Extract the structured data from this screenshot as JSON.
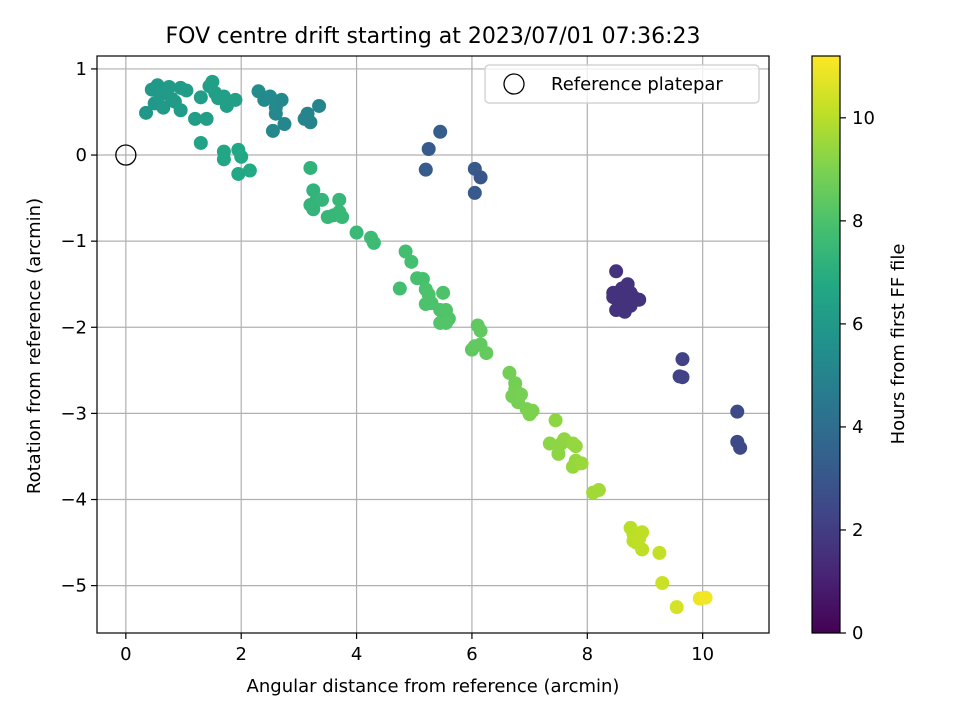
{
  "chart_data": {
    "type": "scatter",
    "title": "FOV centre drift starting at 2023/07/01 07:36:23",
    "xlabel": "Angular distance from reference (arcmin)",
    "ylabel": "Rotation from reference (arcmin)",
    "xlim": [
      -0.5,
      11.15
    ],
    "ylim": [
      -5.55,
      1.15
    ],
    "xticks": [
      0,
      2,
      4,
      6,
      8,
      10
    ],
    "yticks": [
      1,
      0,
      -1,
      -2,
      -3,
      -4,
      -5
    ],
    "grid": true,
    "colormap": "viridis",
    "colorbar": {
      "label": "Hours from first FF file",
      "range": [
        0,
        11.2
      ],
      "ticks": [
        0,
        2,
        4,
        6,
        8,
        10
      ]
    },
    "legend": {
      "position": "top-right",
      "entries": [
        {
          "label": "Reference platepar",
          "marker": "open-circle"
        }
      ]
    },
    "reference_point": {
      "x": 0,
      "y": 0
    },
    "points_columns": [
      "x",
      "y",
      "hours"
    ],
    "points": [
      [
        0.35,
        0.49,
        5.9
      ],
      [
        0.45,
        0.76,
        6.0
      ],
      [
        0.5,
        0.6,
        5.95
      ],
      [
        0.55,
        0.81,
        6.0
      ],
      [
        0.6,
        0.7,
        6.05
      ],
      [
        0.65,
        0.55,
        6.05
      ],
      [
        0.75,
        0.79,
        6.1
      ],
      [
        0.8,
        0.65,
        6.1
      ],
      [
        0.85,
        0.62,
        6.1
      ],
      [
        0.95,
        0.52,
        6.15
      ],
      [
        0.95,
        0.78,
        6.1
      ],
      [
        1.05,
        0.75,
        6.15
      ],
      [
        1.2,
        0.42,
        6.2
      ],
      [
        1.3,
        0.67,
        6.2
      ],
      [
        1.4,
        0.42,
        6.25
      ],
      [
        1.45,
        0.8,
        6.25
      ],
      [
        1.5,
        0.85,
        6.3
      ],
      [
        1.55,
        0.72,
        6.3
      ],
      [
        1.6,
        0.66,
        6.3
      ],
      [
        1.7,
        0.68,
        6.35
      ],
      [
        1.75,
        0.57,
        6.35
      ],
      [
        1.9,
        0.64,
        6.35
      ],
      [
        1.3,
        0.14,
        6.5
      ],
      [
        1.7,
        0.04,
        6.6
      ],
      [
        1.7,
        -0.05,
        6.6
      ],
      [
        1.95,
        0.06,
        6.65
      ],
      [
        2.0,
        -0.02,
        6.7
      ],
      [
        1.95,
        -0.22,
        6.7
      ],
      [
        2.15,
        -0.18,
        6.75
      ],
      [
        2.3,
        0.74,
        5.4
      ],
      [
        2.4,
        0.64,
        5.3
      ],
      [
        2.5,
        0.68,
        5.3
      ],
      [
        2.55,
        0.28,
        5.2
      ],
      [
        2.6,
        0.55,
        5.3
      ],
      [
        2.6,
        0.48,
        5.2
      ],
      [
        2.7,
        0.64,
        5.2
      ],
      [
        2.75,
        0.36,
        5.1
      ],
      [
        3.1,
        0.42,
        5.0
      ],
      [
        3.15,
        0.48,
        5.0
      ],
      [
        3.2,
        0.38,
        5.0
      ],
      [
        3.35,
        0.57,
        5.0
      ],
      [
        5.2,
        -0.17,
        3.2
      ],
      [
        5.25,
        0.07,
        3.2
      ],
      [
        5.45,
        0.27,
        3.3
      ],
      [
        6.05,
        -0.44,
        3.1
      ],
      [
        6.05,
        -0.16,
        3.1
      ],
      [
        6.15,
        -0.26,
        3.0
      ],
      [
        8.5,
        -1.35,
        1.6
      ],
      [
        8.45,
        -1.6,
        1.6
      ],
      [
        8.55,
        -1.65,
        1.6
      ],
      [
        8.6,
        -1.55,
        1.6
      ],
      [
        8.65,
        -1.7,
        1.6
      ],
      [
        8.7,
        -1.5,
        1.6
      ],
      [
        8.75,
        -1.6,
        1.6
      ],
      [
        8.8,
        -1.65,
        1.6
      ],
      [
        8.6,
        -1.8,
        1.6
      ],
      [
        8.5,
        -1.8,
        1.6
      ],
      [
        8.9,
        -1.68,
        1.6
      ],
      [
        8.65,
        -1.82,
        1.6
      ],
      [
        8.45,
        -1.65,
        1.6
      ],
      [
        8.75,
        -1.75,
        1.6
      ],
      [
        9.65,
        -2.37,
        2.2
      ],
      [
        9.6,
        -2.57,
        2.2
      ],
      [
        9.65,
        -2.58,
        2.2
      ],
      [
        10.6,
        -2.98,
        2.5
      ],
      [
        10.6,
        -3.33,
        2.5
      ],
      [
        10.65,
        -3.4,
        2.5
      ],
      [
        3.2,
        -0.15,
        7.2
      ],
      [
        3.25,
        -0.41,
        7.25
      ],
      [
        3.2,
        -0.58,
        7.3
      ],
      [
        3.25,
        -0.63,
        7.3
      ],
      [
        3.3,
        -0.53,
        7.3
      ],
      [
        3.4,
        -0.52,
        7.35
      ],
      [
        3.5,
        -0.72,
        7.4
      ],
      [
        3.6,
        -0.7,
        7.4
      ],
      [
        3.7,
        -0.52,
        7.4
      ],
      [
        3.7,
        -0.66,
        7.45
      ],
      [
        3.75,
        -0.72,
        7.45
      ],
      [
        4.0,
        -0.9,
        7.5
      ],
      [
        4.25,
        -0.96,
        7.6
      ],
      [
        4.3,
        -1.02,
        7.6
      ],
      [
        4.75,
        -1.55,
        7.8
      ],
      [
        4.85,
        -1.12,
        7.8
      ],
      [
        4.95,
        -1.24,
        7.85
      ],
      [
        5.05,
        -1.43,
        7.9
      ],
      [
        5.15,
        -1.44,
        7.9
      ],
      [
        5.2,
        -1.56,
        7.95
      ],
      [
        5.25,
        -1.62,
        8.0
      ],
      [
        5.2,
        -1.73,
        8.0
      ],
      [
        5.3,
        -1.72,
        8.0
      ],
      [
        5.5,
        -1.6,
        8.05
      ],
      [
        5.45,
        -1.8,
        8.05
      ],
      [
        5.55,
        -1.8,
        8.1
      ],
      [
        5.6,
        -1.9,
        8.1
      ],
      [
        5.45,
        -1.95,
        8.1
      ],
      [
        5.55,
        -1.95,
        8.15
      ],
      [
        6.0,
        -2.26,
        8.4
      ],
      [
        6.1,
        -1.98,
        8.4
      ],
      [
        6.15,
        -2.04,
        8.45
      ],
      [
        6.15,
        -2.2,
        8.45
      ],
      [
        6.25,
        -2.3,
        8.5
      ],
      [
        6.05,
        -2.22,
        8.45
      ],
      [
        6.65,
        -2.53,
        8.8
      ],
      [
        6.75,
        -2.65,
        8.8
      ],
      [
        6.75,
        -2.72,
        8.85
      ],
      [
        6.7,
        -2.8,
        8.85
      ],
      [
        6.8,
        -2.87,
        8.9
      ],
      [
        6.85,
        -2.78,
        8.9
      ],
      [
        6.95,
        -2.95,
        8.95
      ],
      [
        7.0,
        -3.01,
        9.0
      ],
      [
        7.05,
        -2.97,
        9.0
      ],
      [
        7.45,
        -3.08,
        9.3
      ],
      [
        7.55,
        -3.35,
        9.3
      ],
      [
        7.5,
        -3.47,
        9.3
      ],
      [
        7.6,
        -3.3,
        9.35
      ],
      [
        7.75,
        -3.35,
        9.4
      ],
      [
        7.8,
        -3.38,
        9.4
      ],
      [
        7.8,
        -3.55,
        9.45
      ],
      [
        7.85,
        -3.58,
        9.45
      ],
      [
        7.75,
        -3.62,
        9.45
      ],
      [
        7.9,
        -3.58,
        9.5
      ],
      [
        7.35,
        -3.35,
        9.25
      ],
      [
        8.1,
        -3.92,
        9.6
      ],
      [
        8.2,
        -3.89,
        9.6
      ],
      [
        8.75,
        -4.33,
        10.0
      ],
      [
        8.8,
        -4.4,
        10.05
      ],
      [
        8.85,
        -4.5,
        10.05
      ],
      [
        8.8,
        -4.48,
        10.05
      ],
      [
        8.9,
        -4.45,
        10.1
      ],
      [
        8.95,
        -4.38,
        10.1
      ],
      [
        8.95,
        -4.58,
        10.1
      ],
      [
        9.25,
        -4.62,
        10.2
      ],
      [
        9.3,
        -4.97,
        10.3
      ],
      [
        9.55,
        -5.25,
        10.5
      ],
      [
        9.95,
        -5.15,
        10.9
      ],
      [
        10.05,
        -5.14,
        11.0
      ]
    ]
  }
}
